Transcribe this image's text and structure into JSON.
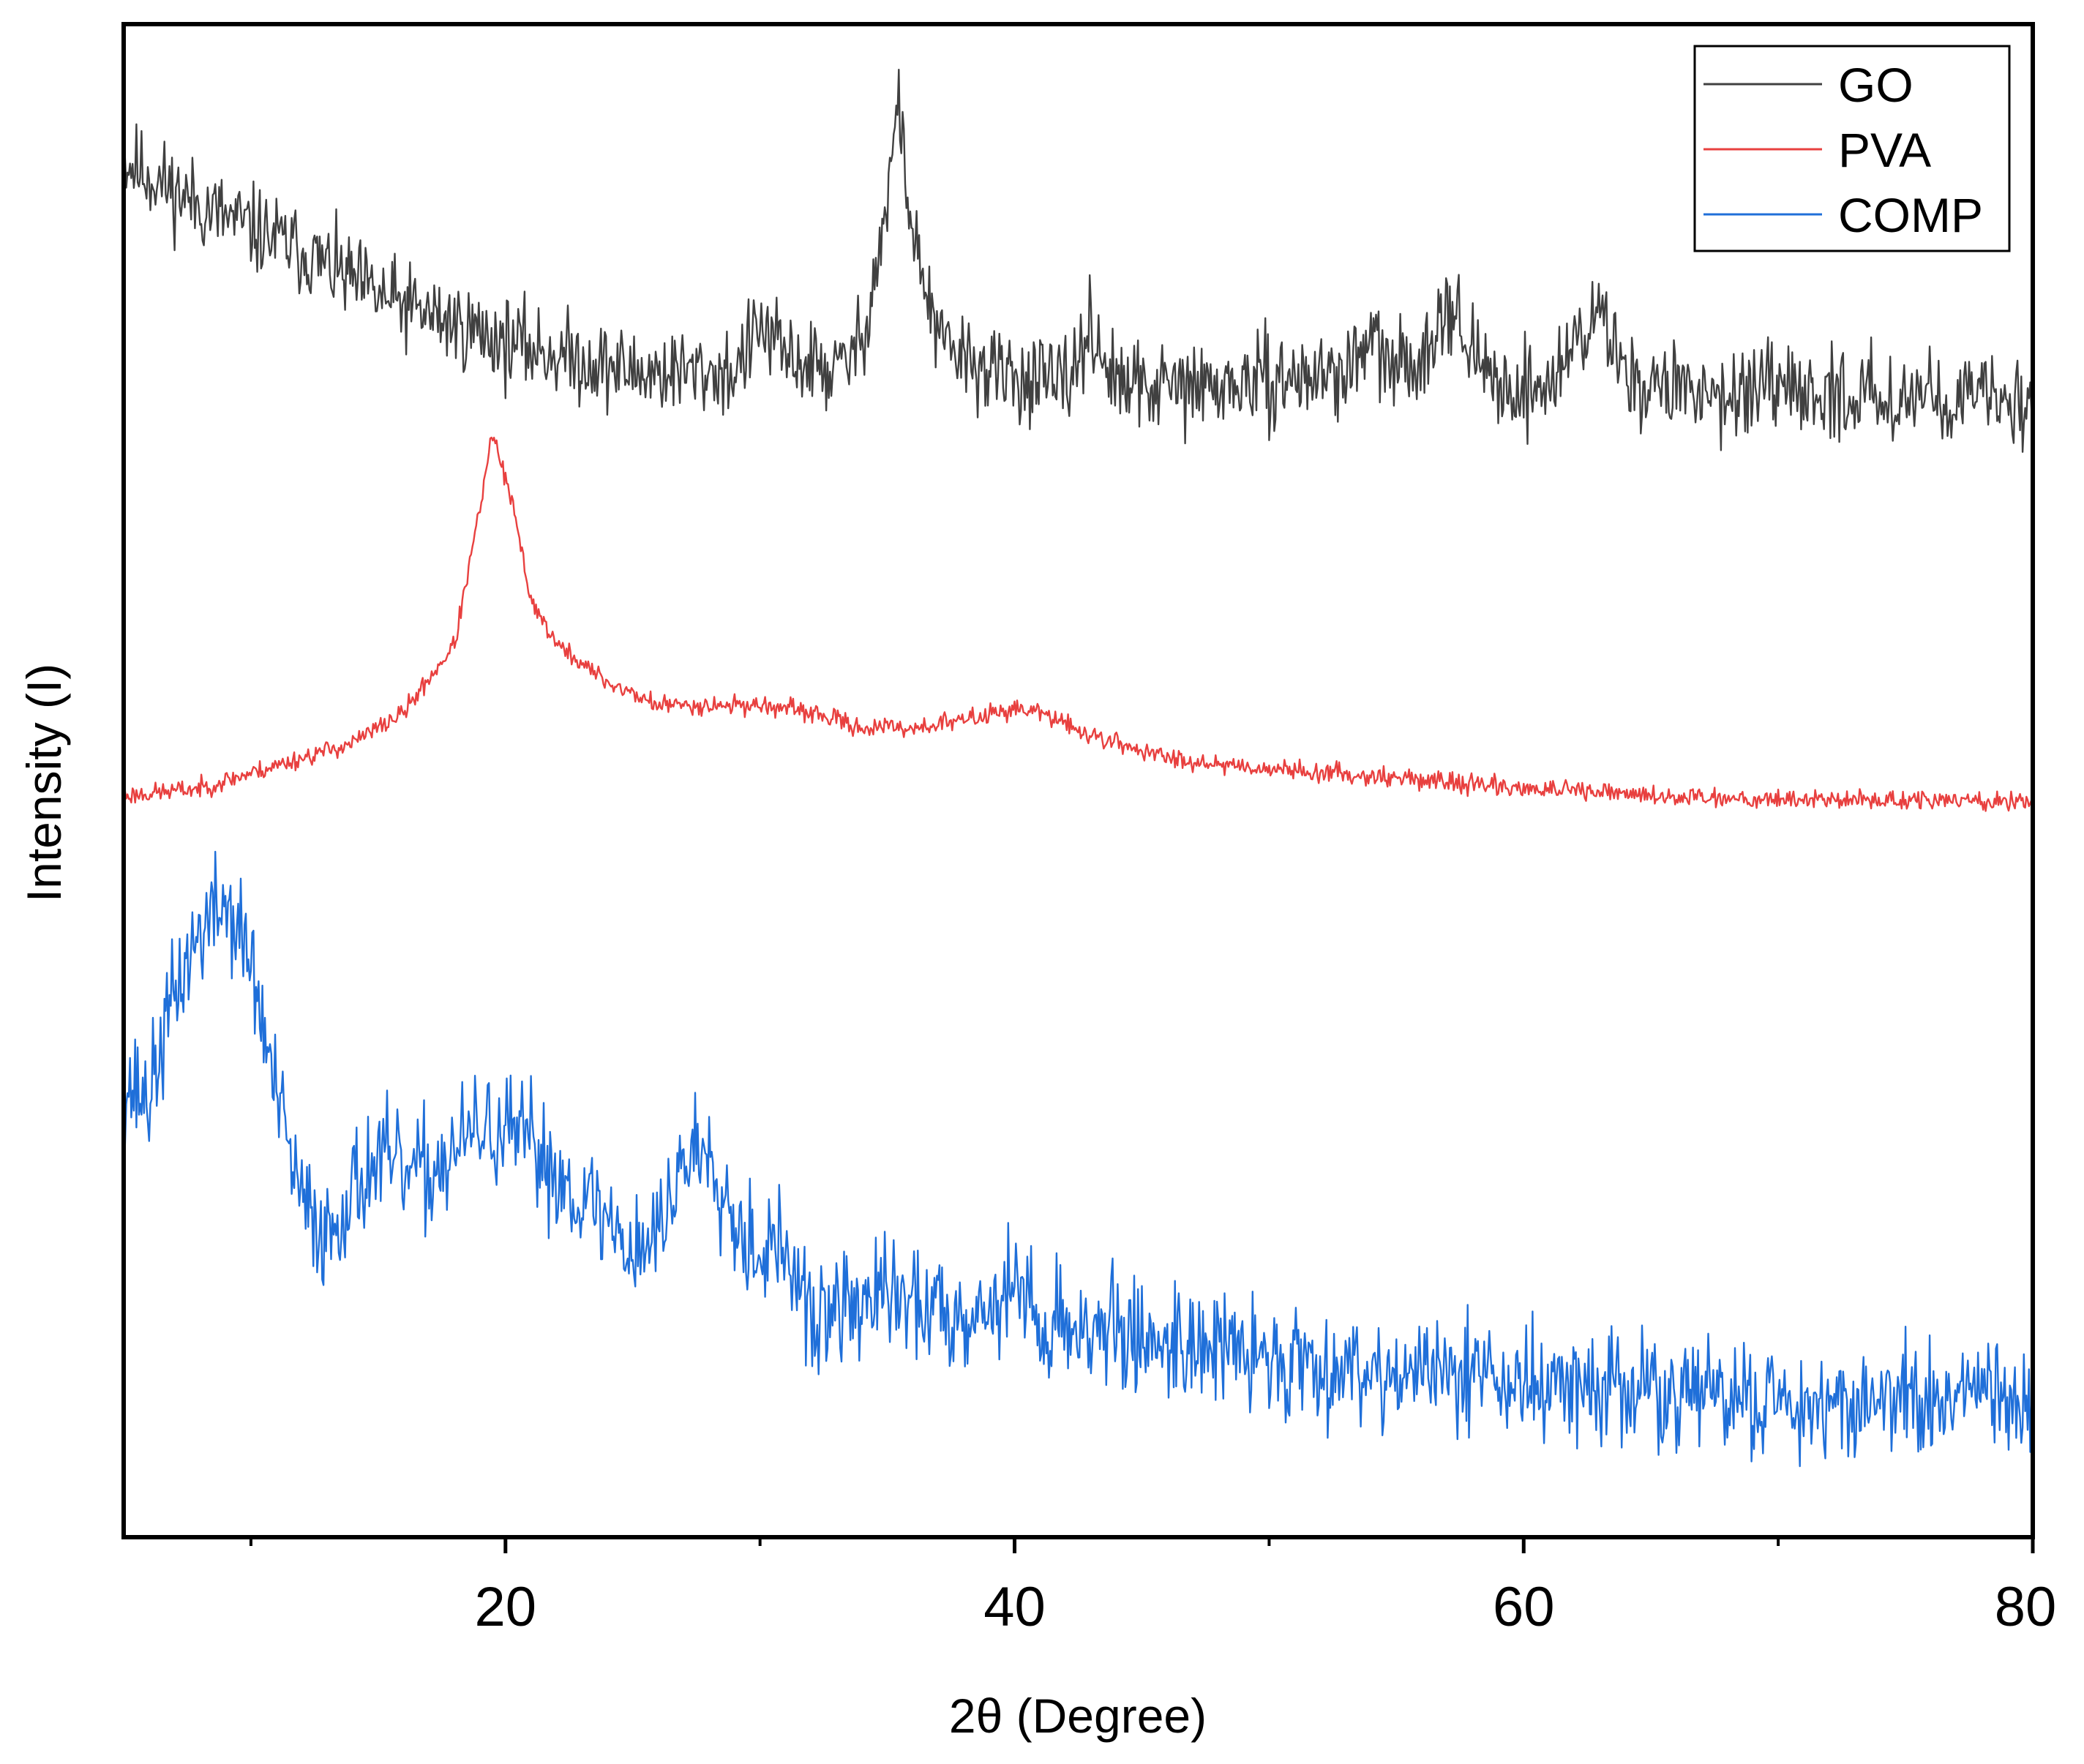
{
  "chart_data": {
    "type": "line",
    "title": "",
    "xlabel": "2θ (Degree)",
    "ylabel": "Intensity (I)",
    "xlim": [
      5,
      80
    ],
    "ylim": [
      0,
      100
    ],
    "xticks": [
      20,
      40,
      60,
      80
    ],
    "xticks_minor": [
      10,
      30,
      50,
      70
    ],
    "yticks": [],
    "grid": false,
    "legend_position": "top-right",
    "series": [
      {
        "name": "GO",
        "color": "#404040",
        "noise": 3.2,
        "seed": 11,
        "points": [
          [
            5,
            91
          ],
          [
            8,
            88
          ],
          [
            12,
            85
          ],
          [
            15,
            82
          ],
          [
            20,
            79
          ],
          [
            25,
            77
          ],
          [
            29,
            77
          ],
          [
            30,
            80
          ],
          [
            31,
            78
          ],
          [
            33,
            77
          ],
          [
            34,
            79
          ],
          [
            35,
            88
          ],
          [
            35.4,
            95
          ],
          [
            36,
            86
          ],
          [
            37,
            79
          ],
          [
            39,
            77
          ],
          [
            42,
            76
          ],
          [
            43,
            80
          ],
          [
            44,
            76
          ],
          [
            48,
            76
          ],
          [
            53,
            77
          ],
          [
            54,
            79
          ],
          [
            55,
            77
          ],
          [
            56,
            78
          ],
          [
            57,
            82
          ],
          [
            58,
            78
          ],
          [
            59,
            76
          ],
          [
            61,
            76
          ],
          [
            62,
            79
          ],
          [
            63,
            81
          ],
          [
            64,
            77
          ],
          [
            65,
            76
          ],
          [
            70,
            75.5
          ],
          [
            75,
            75.5
          ],
          [
            80,
            75
          ]
        ]
      },
      {
        "name": "PVA",
        "color": "#e8403f",
        "noise": 0.7,
        "seed": 23,
        "points": [
          [
            5,
            49
          ],
          [
            8,
            49.5
          ],
          [
            11,
            51
          ],
          [
            14,
            52.5
          ],
          [
            16,
            54.5
          ],
          [
            18,
            59
          ],
          [
            19,
            68
          ],
          [
            19.5,
            73
          ],
          [
            20.3,
            68
          ],
          [
            21,
            62
          ],
          [
            22,
            59
          ],
          [
            24,
            56.5
          ],
          [
            26,
            55
          ],
          [
            28,
            55
          ],
          [
            30,
            55
          ],
          [
            32,
            54.5
          ],
          [
            34,
            53.5
          ],
          [
            36,
            53.5
          ],
          [
            38,
            54
          ],
          [
            40,
            54.8
          ],
          [
            41,
            54.5
          ],
          [
            43,
            53
          ],
          [
            46,
            51.5
          ],
          [
            50,
            50.8
          ],
          [
            55,
            50.2
          ],
          [
            60,
            49.5
          ],
          [
            65,
            49
          ],
          [
            70,
            48.8
          ],
          [
            75,
            48.7
          ],
          [
            80,
            48.6
          ]
        ]
      },
      {
        "name": "COMP",
        "color": "#1f6fd9",
        "noise": 4.2,
        "seed": 37,
        "points": [
          [
            5,
            30
          ],
          [
            6,
            29
          ],
          [
            7,
            36
          ],
          [
            8,
            40
          ],
          [
            9,
            42
          ],
          [
            10,
            38
          ],
          [
            11,
            29
          ],
          [
            12,
            22
          ],
          [
            13,
            20
          ],
          [
            14,
            23
          ],
          [
            15,
            25
          ],
          [
            16,
            24
          ],
          [
            17,
            24
          ],
          [
            19,
            27
          ],
          [
            21,
            26
          ],
          [
            22,
            24
          ],
          [
            24,
            21
          ],
          [
            25,
            19
          ],
          [
            26,
            20
          ],
          [
            27,
            25
          ],
          [
            28,
            26
          ],
          [
            29,
            21
          ],
          [
            30,
            19
          ],
          [
            31,
            19
          ],
          [
            32,
            14
          ],
          [
            33,
            15
          ],
          [
            35,
            16
          ],
          [
            37,
            15
          ],
          [
            39,
            15
          ],
          [
            40,
            17
          ],
          [
            41,
            14
          ],
          [
            43,
            14
          ],
          [
            45,
            13
          ],
          [
            47,
            13
          ],
          [
            49,
            12
          ],
          [
            52,
            11.5
          ],
          [
            55,
            11
          ],
          [
            57,
            10.5
          ],
          [
            58,
            12
          ],
          [
            59,
            10
          ],
          [
            62,
            10
          ],
          [
            66,
            9.5
          ],
          [
            70,
            9
          ],
          [
            75,
            9
          ],
          [
            80,
            9
          ]
        ]
      }
    ]
  }
}
